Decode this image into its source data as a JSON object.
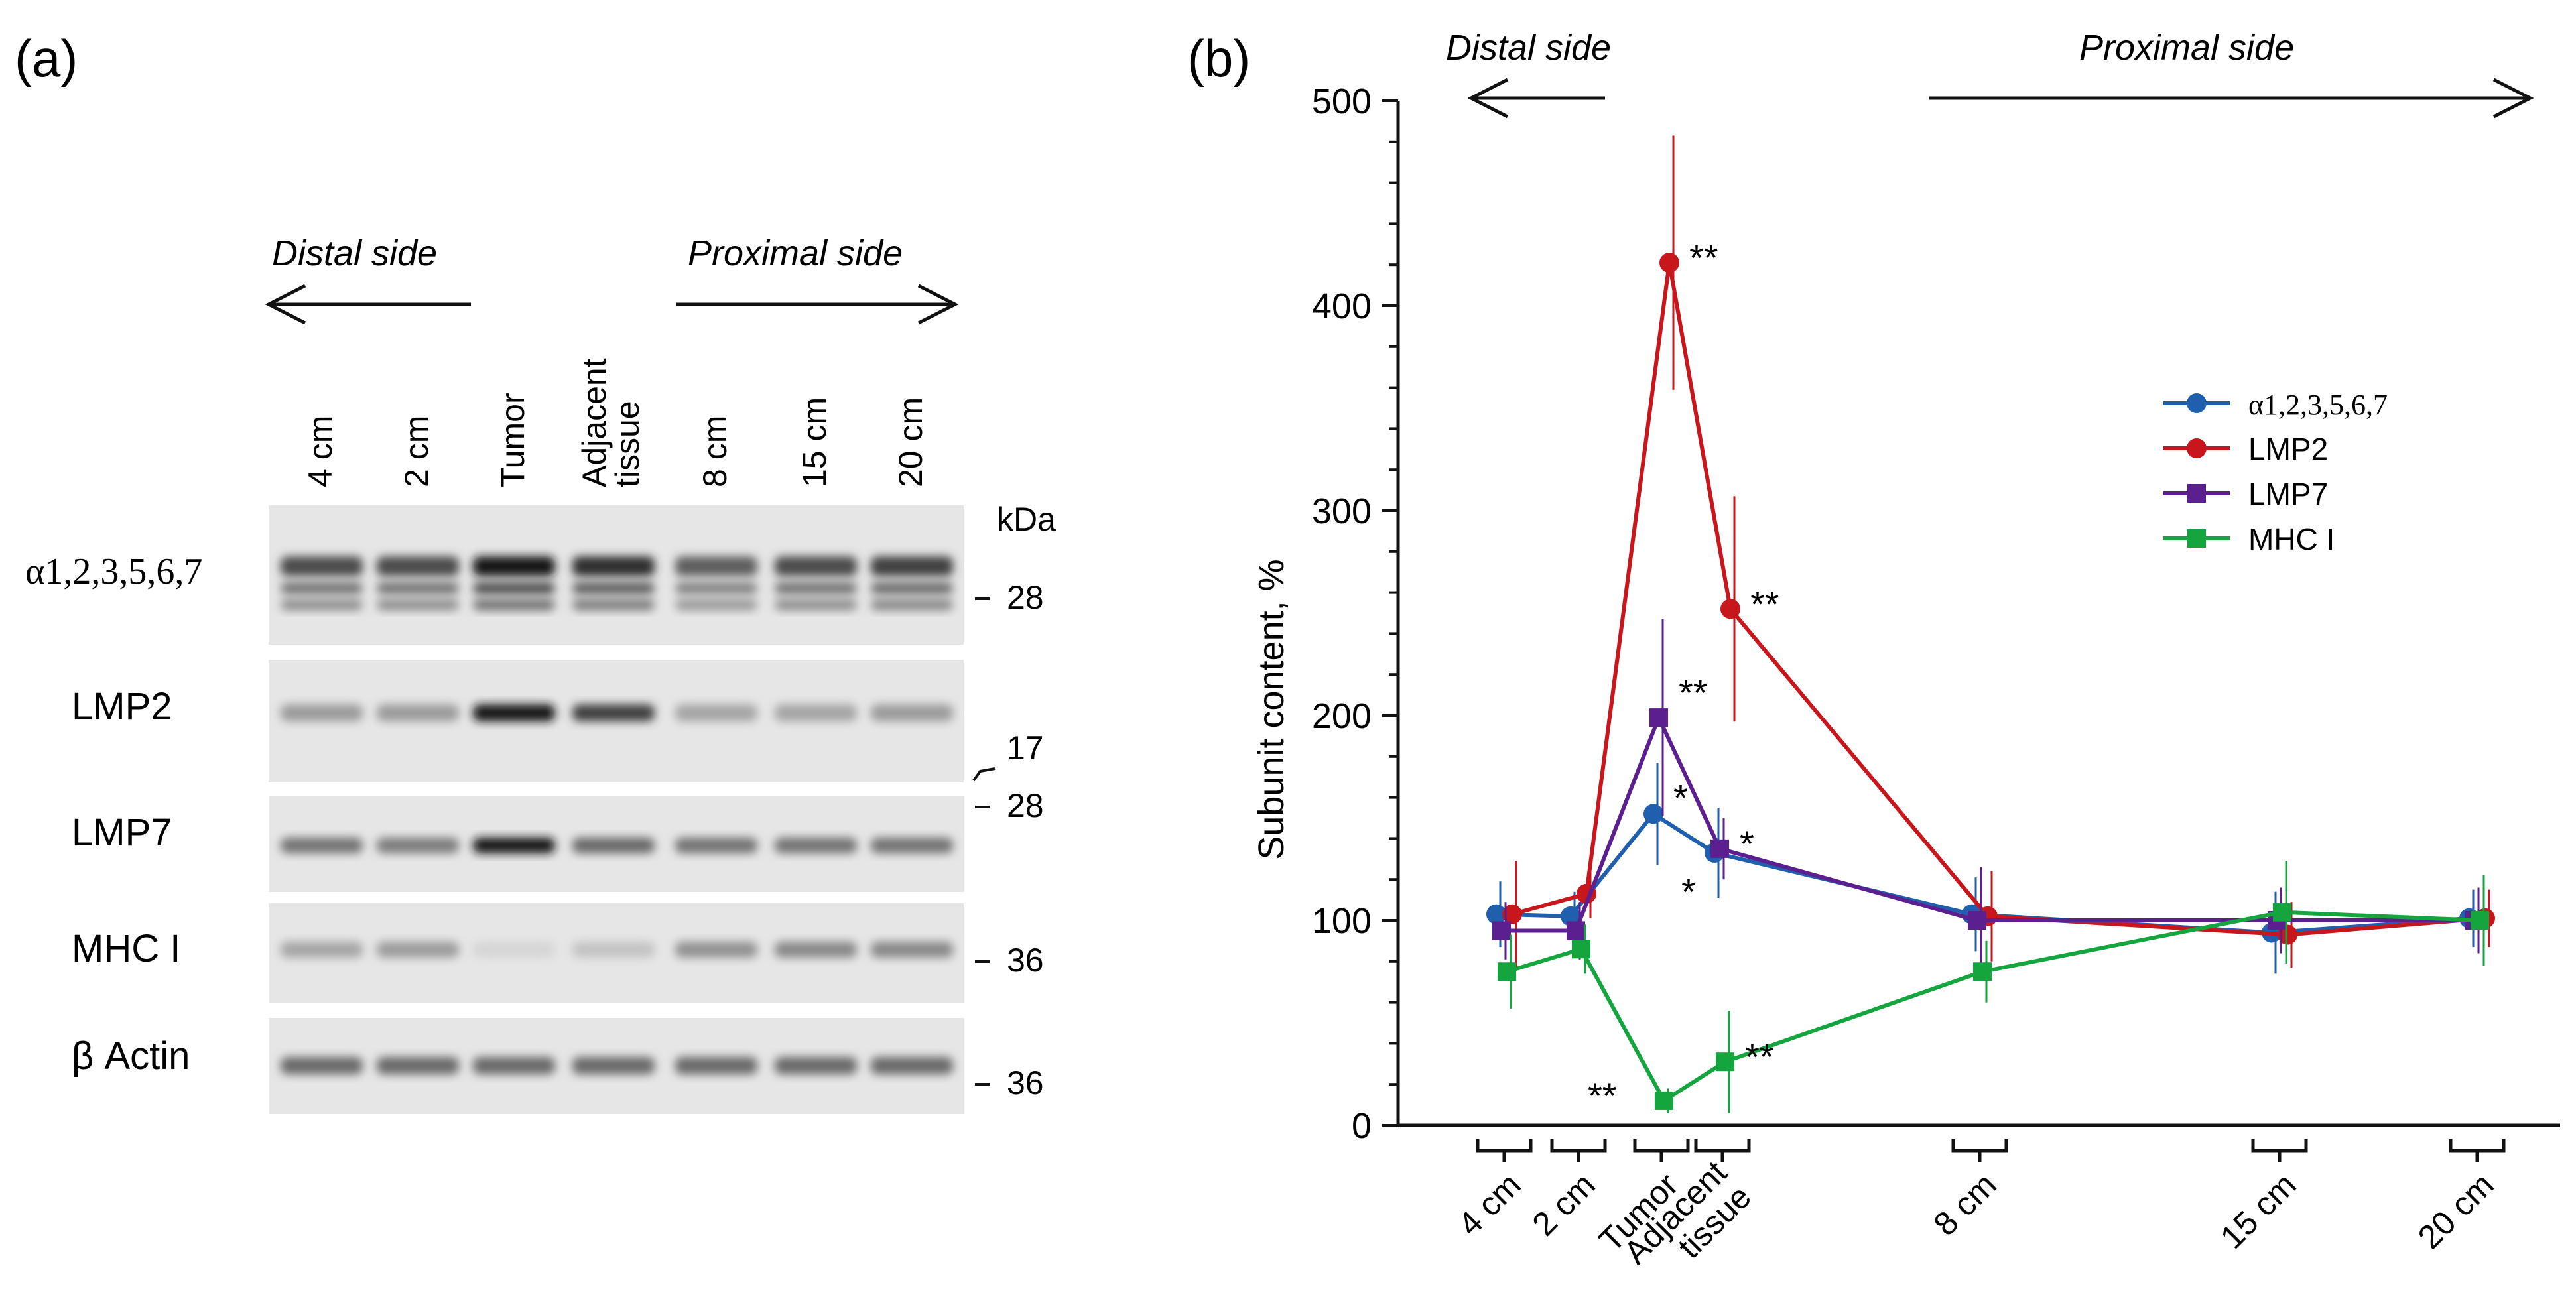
{
  "panel_a": {
    "label": "(a)",
    "distal_label": "Distal side",
    "proximal_label": "Proximal side",
    "lanes": [
      {
        "line1": "4 cm",
        "line2": ""
      },
      {
        "line1": "2 cm",
        "line2": ""
      },
      {
        "line1": "Tumor",
        "line2": ""
      },
      {
        "line1": "Adjacent",
        "line2": "tissue"
      },
      {
        "line1": "8 cm",
        "line2": ""
      },
      {
        "line1": "15 cm",
        "line2": ""
      },
      {
        "line1": "20 cm",
        "line2": ""
      }
    ],
    "kda_label": "kDa",
    "blots": [
      {
        "name": "α1,2,3,5,6,7",
        "intensity": [
          0.75,
          0.75,
          1.0,
          0.9,
          0.65,
          0.75,
          0.8
        ]
      },
      {
        "name": "LMP2",
        "intensity": [
          0.35,
          0.35,
          1.0,
          0.8,
          0.3,
          0.3,
          0.35
        ]
      },
      {
        "name": "LMP7",
        "intensity": [
          0.55,
          0.5,
          1.0,
          0.6,
          0.55,
          0.55,
          0.55
        ]
      },
      {
        "name": "MHC I",
        "intensity": [
          0.3,
          0.35,
          0.06,
          0.15,
          0.4,
          0.45,
          0.45
        ]
      },
      {
        "name": "β Actin",
        "intensity": [
          0.6,
          0.6,
          0.6,
          0.6,
          0.6,
          0.6,
          0.6
        ]
      }
    ],
    "markers": [
      "28",
      "17",
      "28",
      "36",
      "36"
    ]
  },
  "panel_b": {
    "label": "(b)",
    "distal_label": "Distal side",
    "proximal_label": "Proximal side"
  },
  "chart_data": {
    "type": "line",
    "title": "",
    "xlabel": "",
    "ylabel": "Subunit content, %",
    "categories": [
      "4 cm",
      "2 cm",
      "Tumor",
      "Adjacent tissue",
      "8 cm",
      "15 cm",
      "20 cm"
    ],
    "category_lines": [
      [
        "4 cm"
      ],
      [
        "2 cm"
      ],
      [
        "Tumor"
      ],
      [
        "Adjacent",
        "tissue"
      ],
      [
        "8 cm"
      ],
      [
        "15 cm"
      ],
      [
        "20 cm"
      ]
    ],
    "ylim": [
      0,
      500
    ],
    "yticks": [
      0,
      100,
      200,
      300,
      400,
      500
    ],
    "legend_position": "right",
    "series": [
      {
        "name": "α1,2,3,5,6,7",
        "color": "#1f5fad",
        "marker": "circle",
        "values": [
          103,
          102,
          152,
          133,
          103,
          94,
          101
        ],
        "errors": [
          16,
          12,
          25,
          22,
          18,
          20,
          14
        ],
        "annotations": [
          "",
          "",
          "*",
          "*",
          "",
          "",
          ""
        ]
      },
      {
        "name": "LMP2",
        "color": "#c8161d",
        "marker": "circle",
        "values": [
          103,
          113,
          421,
          252,
          102,
          93,
          101
        ],
        "errors": [
          26,
          12,
          62,
          55,
          22,
          16,
          14
        ],
        "annotations": [
          "",
          "",
          "**",
          "**",
          "",
          "",
          ""
        ]
      },
      {
        "name": "LMP7",
        "color": "#5c1f8f",
        "marker": "square",
        "values": [
          95,
          95,
          199,
          135,
          100,
          100,
          100
        ],
        "errors": [
          14,
          14,
          48,
          15,
          26,
          16,
          16
        ],
        "annotations": [
          "",
          "",
          "**",
          "*",
          "",
          "",
          ""
        ]
      },
      {
        "name": "MHC I",
        "color": "#14a53e",
        "marker": "square",
        "values": [
          75,
          86,
          12,
          31,
          75,
          104,
          100
        ],
        "errors": [
          18,
          12,
          6,
          25,
          15,
          25,
          22
        ],
        "annotations": [
          "",
          "",
          "**",
          "**",
          "",
          "",
          ""
        ]
      }
    ]
  }
}
